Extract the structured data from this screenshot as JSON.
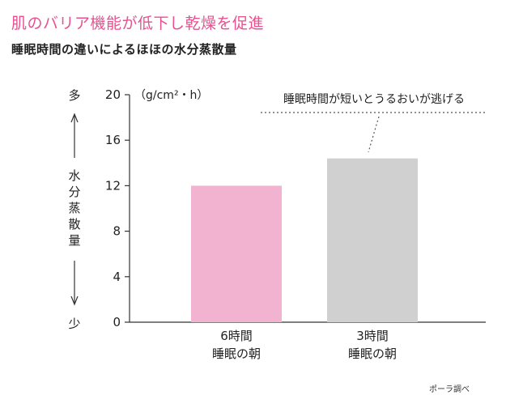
{
  "colors": {
    "title": "#e8508f",
    "bar_6h": "#f2b3d1",
    "bar_3h": "#d0d0d0",
    "axis": "#333333",
    "dotted": "#555555"
  },
  "header": {
    "title": "肌のバリア機能が低下し乾燥を促進",
    "subtitle": "睡眠時間の違いによるほほの水分蒸散量"
  },
  "chart_data": {
    "type": "bar",
    "categories": [
      "6時間\n睡眠の朝",
      "3時間\n睡眠の朝"
    ],
    "values": [
      12.0,
      14.4
    ],
    "ylim": [
      0,
      20
    ],
    "yticks": [
      0,
      4,
      8,
      12,
      16,
      20
    ],
    "ytick_labels": [
      "0",
      "4",
      "8",
      "12",
      "16",
      "20"
    ],
    "unit": "（g/cm²・h）",
    "ylabel": "水分蒸散量",
    "ylabel_top": "多",
    "ylabel_bottom": "少",
    "annotation": "睡眠時間が短いとうるおいが逃げる",
    "grid": false,
    "legend": "none"
  },
  "footer": {
    "source": "ポーラ調べ"
  }
}
